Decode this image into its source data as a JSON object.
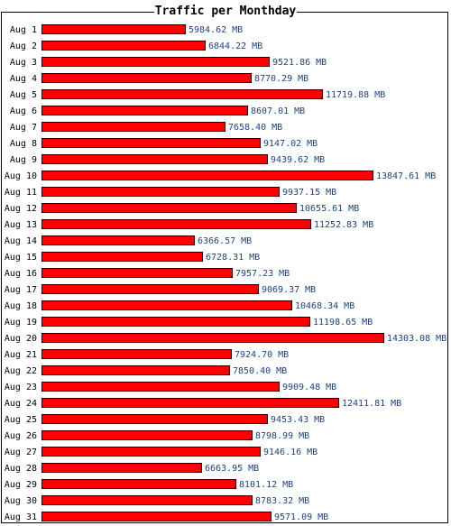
{
  "chart_data": {
    "type": "bar",
    "orientation": "horizontal",
    "title": "Traffic per Monthday",
    "unit": "MB",
    "categories": [
      "Aug 1",
      "Aug 2",
      "Aug 3",
      "Aug 4",
      "Aug 5",
      "Aug 6",
      "Aug 7",
      "Aug 8",
      "Aug 9",
      "Aug 10",
      "Aug 11",
      "Aug 12",
      "Aug 13",
      "Aug 14",
      "Aug 15",
      "Aug 16",
      "Aug 17",
      "Aug 18",
      "Aug 19",
      "Aug 20",
      "Aug 21",
      "Aug 22",
      "Aug 23",
      "Aug 24",
      "Aug 25",
      "Aug 26",
      "Aug 27",
      "Aug 28",
      "Aug 29",
      "Aug 30",
      "Aug 31"
    ],
    "values": [
      5984.62,
      6844.22,
      9521.86,
      8770.29,
      11719.88,
      8607.01,
      7658.4,
      9147.02,
      9439.62,
      13847.61,
      9937.15,
      10655.61,
      11252.83,
      6366.57,
      6728.31,
      7957.23,
      9069.37,
      10468.34,
      11198.65,
      14303.08,
      7924.7,
      7850.4,
      9909.48,
      12411.81,
      9453.43,
      8798.99,
      9146.16,
      6663.95,
      8101.12,
      8783.32,
      9571.09
    ],
    "value_labels": [
      "5984.62 MB",
      "6844.22 MB",
      "9521.86 MB",
      "8770.29 MB",
      "11719.88 MB",
      "8607.01 MB",
      "7658.40 MB",
      "9147.02 MB",
      "9439.62 MB",
      "13847.61 MB",
      "9937.15 MB",
      "10655.61 MB",
      "11252.83 MB",
      "6366.57 MB",
      "6728.31 MB",
      "7957.23 MB",
      "9069.37 MB",
      "10468.34 MB",
      "11198.65 MB",
      "14303.08 MB",
      "7924.70 MB",
      "7850.40 MB",
      "9909.48 MB",
      "12411.81 MB",
      "9453.43 MB",
      "8798.99 MB",
      "9146.16 MB",
      "6663.95 MB",
      "8101.12 MB",
      "8783.32 MB",
      "9571.09 MB"
    ],
    "xlim": [
      0,
      14303.08
    ],
    "grid": false,
    "legend": "none",
    "colors": {
      "bar_fill": "#ff0000",
      "bar_stroke": "#000000",
      "value_text": "#1f3f8f",
      "category_text": "#000000"
    }
  }
}
